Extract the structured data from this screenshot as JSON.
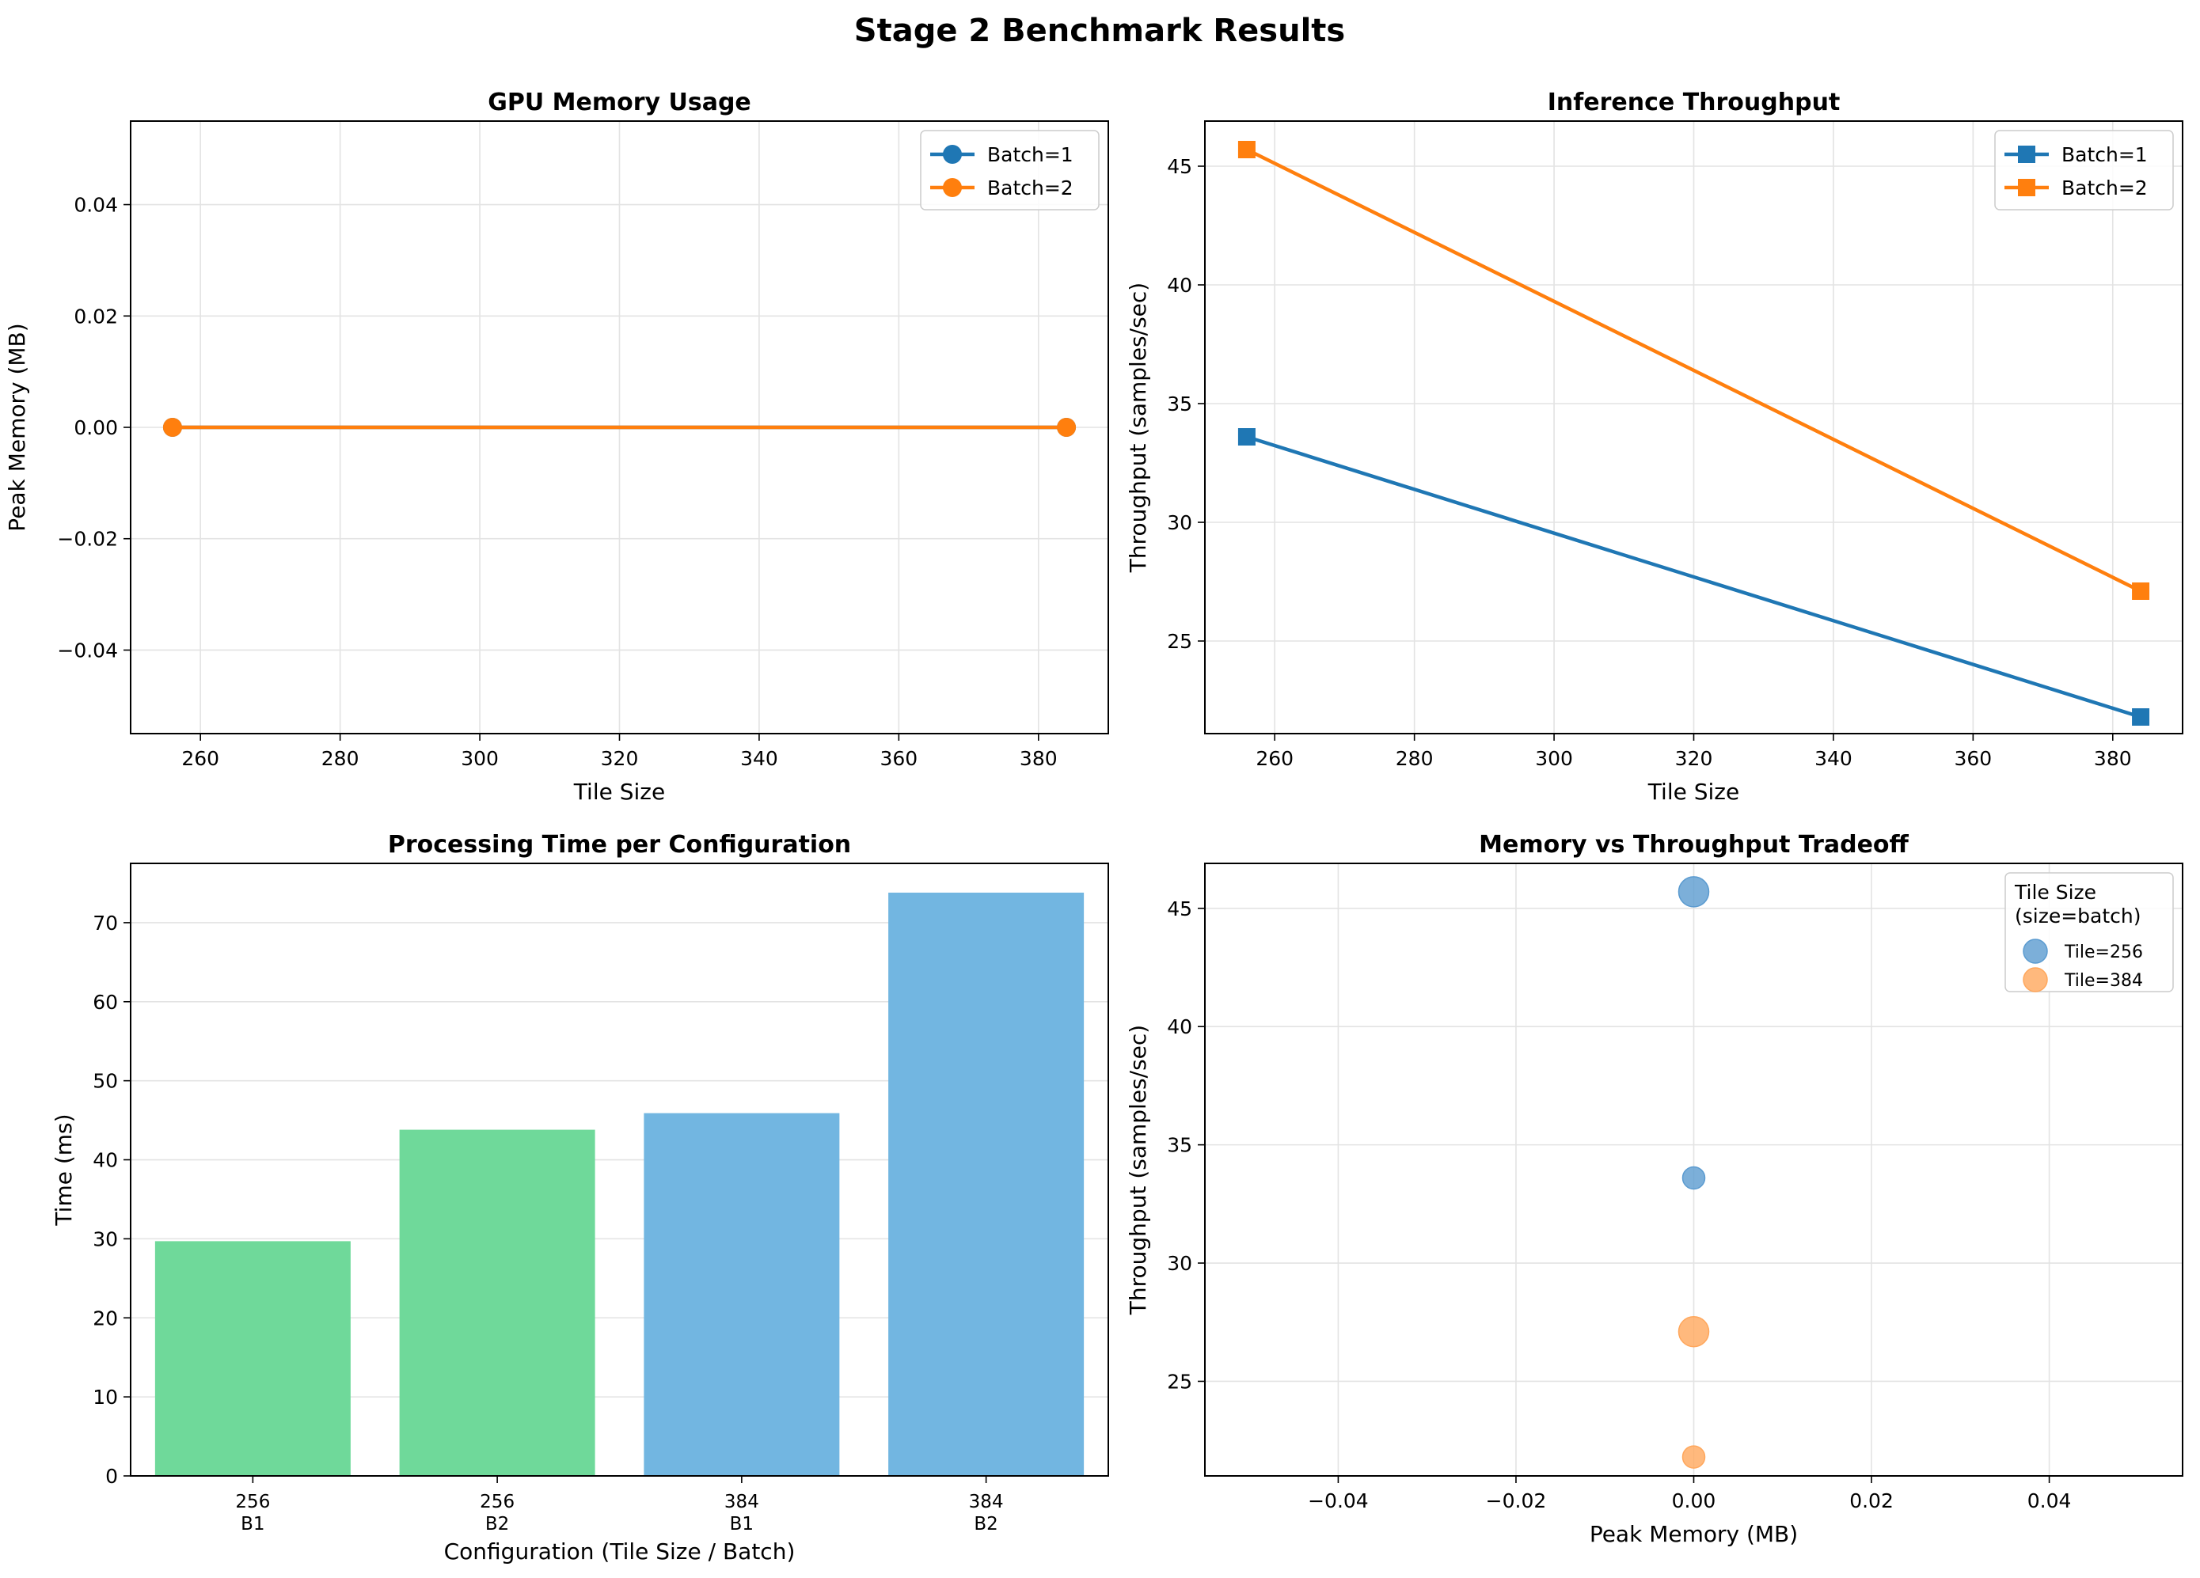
{
  "figure_title": "Stage 2 Benchmark Results",
  "colors": {
    "batch1": "#1f77b4",
    "batch2": "#ff7f0e",
    "bar_256": "#6fd99a",
    "bar_384": "#72b6e1",
    "scatter_256": "#5b9bd0",
    "scatter_384": "#ffa75c",
    "grid": "#e3e3e3"
  },
  "chart_data": [
    {
      "id": "memory",
      "type": "line",
      "title": "GPU Memory Usage",
      "xlabel": "Tile Size",
      "ylabel": "Peak Memory (MB)",
      "xlim": [
        250,
        390
      ],
      "ylim": [
        -0.055,
        0.055
      ],
      "xticks": [
        260,
        280,
        300,
        320,
        340,
        360,
        380
      ],
      "yticks": [
        -0.04,
        -0.02,
        0.0,
        0.02,
        0.04
      ],
      "ytick_labels": [
        "−0.04",
        "−0.02",
        "0.00",
        "0.02",
        "0.04"
      ],
      "grid": true,
      "legend_position": "top-right",
      "marker": "circle",
      "series": [
        {
          "name": "Batch=1",
          "color_key": "batch1",
          "x": [
            256,
            384
          ],
          "y": [
            0.0,
            0.0
          ]
        },
        {
          "name": "Batch=2",
          "color_key": "batch2",
          "x": [
            256,
            384
          ],
          "y": [
            0.0,
            0.0
          ]
        }
      ]
    },
    {
      "id": "throughput",
      "type": "line",
      "title": "Inference Throughput",
      "xlabel": "Tile Size",
      "ylabel": "Throughput (samples/sec)",
      "xlim": [
        250,
        390
      ],
      "ylim": [
        21.1,
        46.9
      ],
      "xticks": [
        260,
        280,
        300,
        320,
        340,
        360,
        380
      ],
      "yticks": [
        25,
        30,
        35,
        40,
        45
      ],
      "ytick_labels": [
        "25",
        "30",
        "35",
        "40",
        "45"
      ],
      "grid": true,
      "legend_position": "top-right",
      "marker": "square",
      "series": [
        {
          "name": "Batch=1",
          "color_key": "batch1",
          "x": [
            256,
            384
          ],
          "y": [
            33.6,
            21.8
          ]
        },
        {
          "name": "Batch=2",
          "color_key": "batch2",
          "x": [
            256,
            384
          ],
          "y": [
            45.7,
            27.1
          ]
        }
      ]
    },
    {
      "id": "time",
      "type": "bar",
      "title": "Processing Time per Configuration",
      "xlabel": "Configuration (Tile Size / Batch)",
      "ylabel": "Time (ms)",
      "ylim": [
        0,
        77.5
      ],
      "yticks": [
        0,
        10,
        20,
        30,
        40,
        50,
        60,
        70
      ],
      "ytick_labels": [
        "0",
        "10",
        "20",
        "30",
        "40",
        "50",
        "60",
        "70"
      ],
      "grid": true,
      "categories": [
        [
          "256",
          "B1"
        ],
        [
          "256",
          "B2"
        ],
        [
          "384",
          "B1"
        ],
        [
          "384",
          "B2"
        ]
      ],
      "values": [
        29.7,
        43.8,
        45.9,
        73.8
      ],
      "color_keys": [
        "bar_256",
        "bar_256",
        "bar_384",
        "bar_384"
      ]
    },
    {
      "id": "tradeoff",
      "type": "scatter",
      "title": "Memory vs Throughput Tradeoff",
      "xlabel": "Peak Memory (MB)",
      "ylabel": "Throughput (samples/sec)",
      "xlim": [
        -0.055,
        0.055
      ],
      "ylim": [
        21.0,
        46.9
      ],
      "xticks": [
        -0.04,
        -0.02,
        0.0,
        0.02,
        0.04
      ],
      "xtick_labels": [
        "−0.04",
        "−0.02",
        "0.00",
        "0.02",
        "0.04"
      ],
      "yticks": [
        25,
        30,
        35,
        40,
        45
      ],
      "ytick_labels": [
        "25",
        "30",
        "35",
        "40",
        "45"
      ],
      "grid": true,
      "legend_position": "top-right",
      "legend_title": [
        "Tile Size",
        "(size=batch)"
      ],
      "series": [
        {
          "name": "Tile=256",
          "color_key": "scatter_256",
          "points": [
            {
              "x": 0.0,
              "y": 45.7,
              "batch": 2
            },
            {
              "x": 0.0,
              "y": 33.6,
              "batch": 1
            }
          ]
        },
        {
          "name": "Tile=384",
          "color_key": "scatter_384",
          "points": [
            {
              "x": 0.0,
              "y": 27.1,
              "batch": 2
            },
            {
              "x": 0.0,
              "y": 21.8,
              "batch": 1
            }
          ]
        }
      ]
    }
  ]
}
